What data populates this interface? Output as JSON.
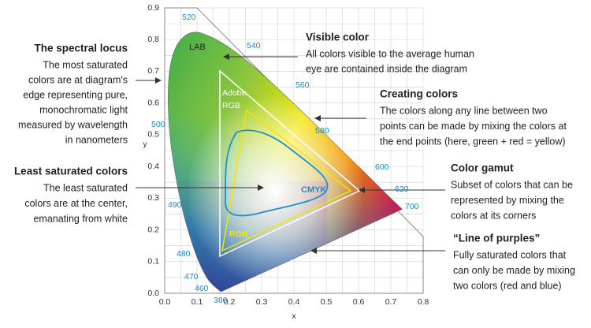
{
  "annotations": [
    {
      "title": "The spectral locus",
      "lines": [
        "The most saturated",
        "colors are at diagram's",
        "edge representing pure,",
        "monochromatic light",
        "measured by wavelength",
        "in nanometers"
      ]
    },
    {
      "title": "Least saturated colors",
      "lines": [
        "The least saturated",
        "colors are at the center,",
        "emanating from white"
      ]
    },
    {
      "title": "Visible color",
      "lines": [
        "All colors visible to the average human",
        "eye are contained inside the diagram"
      ]
    },
    {
      "title": "Creating colors",
      "lines": [
        "The colors along any line between two",
        "points can be made by mixing the colors at",
        "the end points (here, green + red = yellow)"
      ]
    },
    {
      "title": "Color gamut",
      "lines": [
        "Subset of colors that can be",
        "represented by mixing the",
        "colors at its corners"
      ]
    },
    {
      "title": "“Line of purples”",
      "lines": [
        "Fully saturated colors that",
        "can only be made by mixing",
        "two colors (red and blue)"
      ]
    }
  ],
  "diagram_labels": {
    "lab": "LAB",
    "adobe_rgb": [
      "Adobe",
      "RGB"
    ],
    "cmyk": "CMYK",
    "rgb": "RGB"
  },
  "wavelengths": [
    "520",
    "540",
    "560",
    "580",
    "600",
    "620",
    "700",
    "500",
    "490",
    "480",
    "470",
    "460",
    "380"
  ],
  "axes": {
    "x_label": "x",
    "y_label": "y",
    "x_ticks": [
      "0.0",
      "0.1",
      "0.2",
      "0.3",
      "0.4",
      "0.5",
      "0.6",
      "0.7",
      "0.8"
    ],
    "y_ticks": [
      "0.0",
      "0.1",
      "0.2",
      "0.3",
      "0.4",
      "0.5",
      "0.6",
      "0.7",
      "0.8",
      "0.9"
    ]
  }
}
